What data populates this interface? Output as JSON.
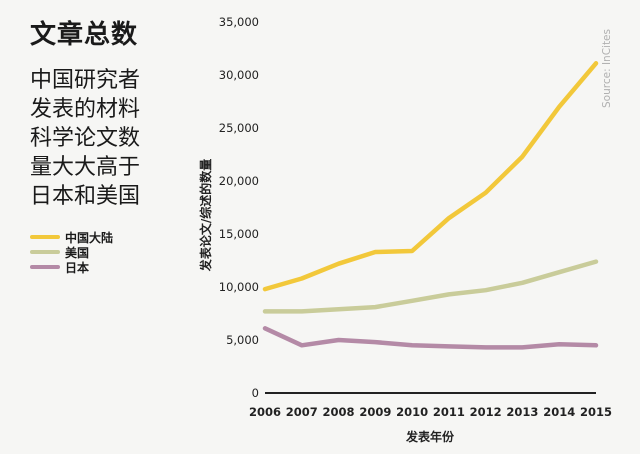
{
  "header": {
    "title": "文章总数",
    "subtitle_lines": [
      "中国研究者",
      "发表的材料",
      "科学论文数",
      "量大大高于",
      "日本和美国"
    ]
  },
  "source": "Source: InCites",
  "chart_data": {
    "type": "line",
    "xlabel": "发表年份",
    "ylabel": "发表论文/综述的数量",
    "x": [
      2006,
      2007,
      2008,
      2009,
      2010,
      2011,
      2012,
      2013,
      2014,
      2015
    ],
    "ylim": [
      0,
      35000
    ],
    "yticks": [
      0,
      5000,
      10000,
      15000,
      20000,
      25000,
      30000,
      35000
    ],
    "ytick_labels": [
      "0",
      "5,000",
      "10,000",
      "15,000",
      "20,000",
      "25,000",
      "30,000",
      "35,000"
    ],
    "grid": false,
    "legend_position": "left",
    "series": [
      {
        "name": "中国大陆",
        "color": "#f2c83a",
        "values": [
          9800,
          10800,
          12200,
          13300,
          13400,
          16500,
          18900,
          22300,
          27000,
          31100
        ]
      },
      {
        "name": "美国",
        "color": "#c9cc9a",
        "values": [
          7700,
          7700,
          7900,
          8100,
          8700,
          9300,
          9700,
          10400,
          11400,
          12400
        ]
      },
      {
        "name": "日本",
        "color": "#b48aa6",
        "values": [
          6100,
          4500,
          5000,
          4800,
          4500,
          4400,
          4300,
          4300,
          4600,
          4500
        ]
      }
    ]
  }
}
